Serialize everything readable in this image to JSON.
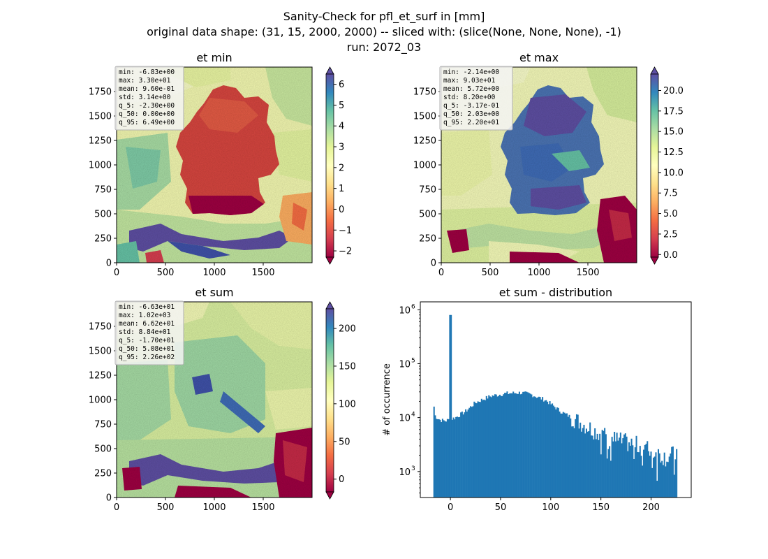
{
  "figure": {
    "suptitle": [
      "Sanity-Check for pfl_et_surf in [mm]",
      "original data shape: (31, 15, 2000, 2000) -- sliced with: (slice(None, None, None), -1)",
      "run: 2072_03"
    ]
  },
  "panels": [
    {
      "id": "et-min",
      "title": "et min",
      "xlim": [
        0,
        2000
      ],
      "ylim": [
        0,
        2000
      ],
      "xticks": [
        0,
        500,
        1000,
        1500
      ],
      "yticks": [
        0,
        250,
        500,
        750,
        1000,
        1250,
        1500,
        1750
      ],
      "stats": [
        "min: -6.83e+00",
        "max: 3.30e+01",
        "mean: 9.60e-01",
        "std: 3.14e+00",
        "q_5: -2.30e+00",
        "q_50: 0.00e+00",
        "q_95: 6.49e+00"
      ],
      "colorbar": {
        "vmin": -2.3,
        "vmax": 6.49,
        "ticks": [
          -2,
          -1,
          0,
          1,
          2,
          3,
          4,
          5,
          6
        ],
        "labels": [
          "−2",
          "−1",
          "0",
          "1",
          "2",
          "3",
          "4",
          "5",
          "6"
        ],
        "extend": "both",
        "cmap": "Spectral"
      }
    },
    {
      "id": "et-max",
      "title": "et max",
      "xlim": [
        0,
        2000
      ],
      "ylim": [
        0,
        2000
      ],
      "xticks": [
        0,
        500,
        1000,
        1500
      ],
      "yticks": [
        0,
        250,
        500,
        750,
        1000,
        1250,
        1500,
        1750
      ],
      "stats": [
        "min: -2.14e+00",
        "max: 9.03e+01",
        "mean: 5.72e+00",
        "std: 8.20e+00",
        "q_5: -3.17e-01",
        "q_50: 2.03e+00",
        "q_95: 2.20e+01"
      ],
      "colorbar": {
        "vmin": -0.317,
        "vmax": 22.0,
        "ticks": [
          0,
          2.5,
          5,
          7.5,
          10,
          12.5,
          15,
          17.5,
          20
        ],
        "labels": [
          "0.0",
          "2.5",
          "5.0",
          "7.5",
          "10.0",
          "12.5",
          "15.0",
          "17.5",
          "20.0"
        ],
        "extend": "both",
        "cmap": "Spectral"
      }
    },
    {
      "id": "et-sum",
      "title": "et sum",
      "xlim": [
        0,
        2000
      ],
      "ylim": [
        0,
        2000
      ],
      "xticks": [
        0,
        500,
        1000,
        1500
      ],
      "yticks": [
        0,
        250,
        500,
        750,
        1000,
        1250,
        1500,
        1750
      ],
      "stats": [
        "min: -6.63e+01",
        "max: 1.02e+03",
        "mean: 6.62e+01",
        "std: 8.84e+01",
        "q_5: -1.70e+01",
        "q_50: 5.08e+01",
        "q_95: 2.26e+02"
      ],
      "colorbar": {
        "vmin": -17.0,
        "vmax": 226.0,
        "ticks": [
          0,
          50,
          100,
          150,
          200
        ],
        "labels": [
          "0",
          "50",
          "100",
          "150",
          "200"
        ],
        "extend": "both",
        "cmap": "Spectral"
      }
    }
  ],
  "chart_data": {
    "type": "bar",
    "title": "et sum - distribution",
    "xlabel": "",
    "ylabel": "# of occurrence",
    "yscale": "log",
    "xlim": [
      -30,
      240
    ],
    "ylim": [
      330,
      1400000
    ],
    "xticks": [
      0,
      50,
      100,
      150,
      200
    ],
    "ytick_labels": [
      "10",
      "10",
      "10",
      "10"
    ],
    "ytick_exponents": [
      "3",
      "4",
      "5",
      "6"
    ],
    "bins": {
      "start": -17,
      "end": 226,
      "count": 200
    },
    "spike": {
      "x": 0,
      "count": 800000
    },
    "envelope": [
      {
        "x": -17,
        "count": 16000
      },
      {
        "x": -15,
        "count": 10500
      },
      {
        "x": -10,
        "count": 9000
      },
      {
        "x": -5,
        "count": 8700
      },
      {
        "x": 5,
        "count": 10000
      },
      {
        "x": 15,
        "count": 13000
      },
      {
        "x": 25,
        "count": 19000
      },
      {
        "x": 40,
        "count": 25000
      },
      {
        "x": 55,
        "count": 28000
      },
      {
        "x": 70,
        "count": 29000
      },
      {
        "x": 80,
        "count": 27000
      },
      {
        "x": 95,
        "count": 21000
      },
      {
        "x": 110,
        "count": 13000
      },
      {
        "x": 125,
        "count": 9000
      },
      {
        "x": 140,
        "count": 6300
      },
      {
        "x": 155,
        "count": 4400
      },
      {
        "x": 170,
        "count": 3600
      },
      {
        "x": 185,
        "count": 3100
      },
      {
        "x": 200,
        "count": 2500
      },
      {
        "x": 215,
        "count": 1800
      },
      {
        "x": 226,
        "count": 2200
      }
    ],
    "color": "#1f77b4"
  }
}
